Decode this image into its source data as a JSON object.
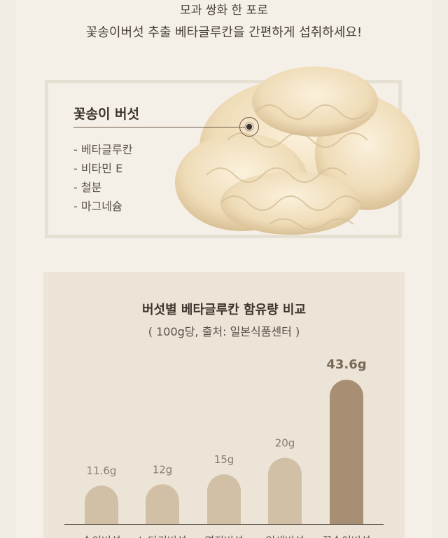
{
  "intro": {
    "line1": "모과 쌍화 한 포로",
    "line2": "꽃송이버섯 추출 베타글루칸을 간편하게 섭취하세요!"
  },
  "ingredient": {
    "name": "꽃송이 버섯",
    "nutrients": [
      "- 베타글루칸",
      "- 비타민 E",
      "- 철분",
      "- 마그네슘"
    ],
    "image": "cauliflower-mushroom-photo"
  },
  "chart_data": {
    "type": "bar",
    "title": "버섯별 베타글루칸 함유량 비교",
    "subtitle": "( 100g당, 출처: 일본식품센터 )",
    "categories": [
      "송이버섯",
      "느타리버섯",
      "영지버섯",
      "잎새버섯",
      "꽃송이버섯"
    ],
    "values": [
      11.6,
      12,
      15,
      20,
      43.6
    ],
    "data_labels": [
      "11.6g",
      "12g",
      "15g",
      "20g",
      "43.6g"
    ],
    "unit": "g",
    "ylim": [
      0,
      43.6
    ],
    "grid": false,
    "colors": {
      "default": "#d1c0a5",
      "highlight": "#a88f74",
      "label": "#8a7d70",
      "highlight_label": "#7a6a5a",
      "baseline": "#4a4039"
    }
  }
}
